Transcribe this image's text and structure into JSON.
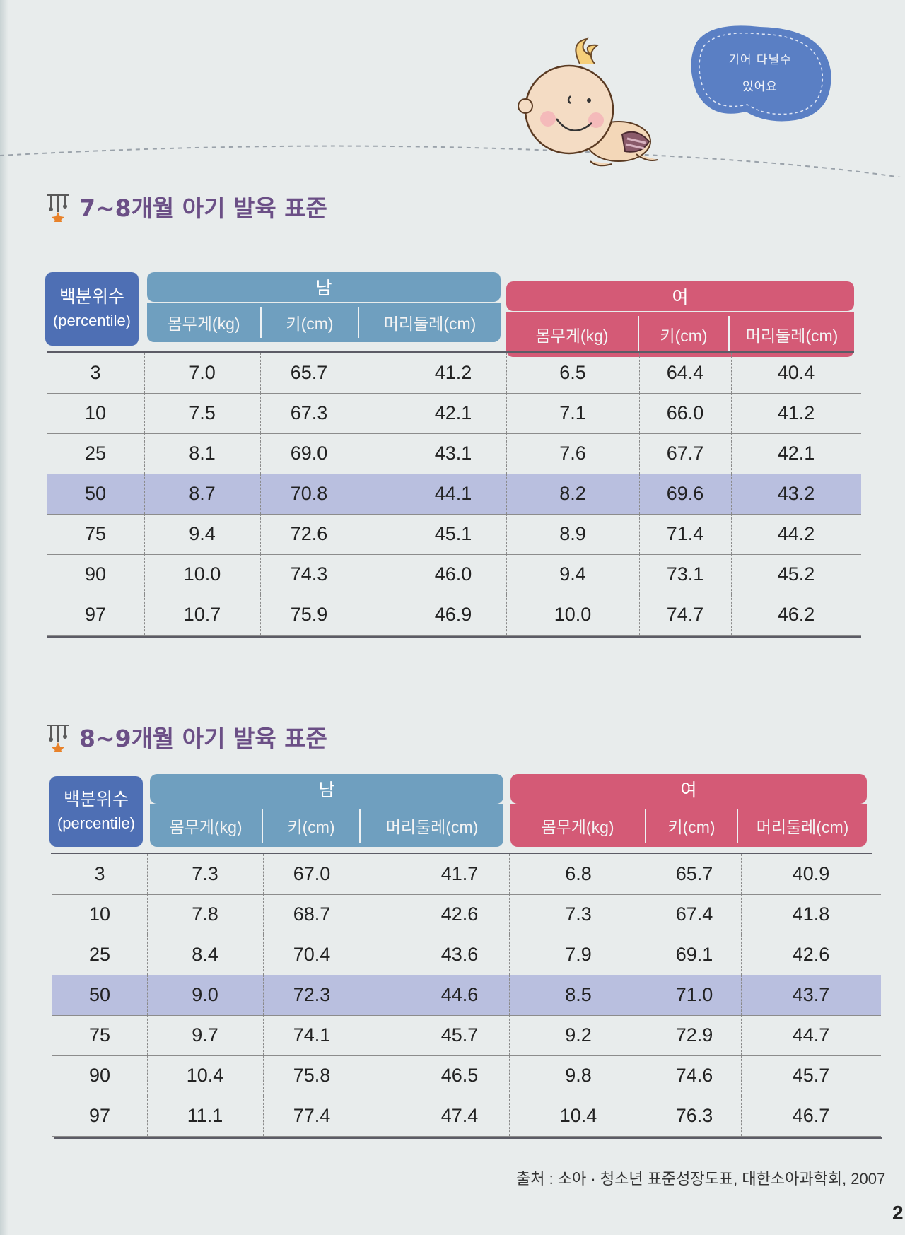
{
  "bubble": {
    "line1": "기어 다닐수",
    "line2": "있어요"
  },
  "section1": {
    "title": "7~8개월 아기 발육 표준"
  },
  "section2": {
    "title": "8~9개월 아기 발육 표준"
  },
  "headers": {
    "percentile_ko": "백분위수",
    "percentile_en": "(percentile)",
    "male": "남",
    "female": "여",
    "weight": "몸무게(kg)",
    "height": "키(cm)",
    "head": "머리둘레(cm)"
  },
  "table1": {
    "rows": [
      [
        "3",
        "7.0",
        "65.7",
        "41.2",
        "6.5",
        "64.4",
        "40.4"
      ],
      [
        "10",
        "7.5",
        "67.3",
        "42.1",
        "7.1",
        "66.0",
        "41.2"
      ],
      [
        "25",
        "8.1",
        "69.0",
        "43.1",
        "7.6",
        "67.7",
        "42.1"
      ],
      [
        "50",
        "8.7",
        "70.8",
        "44.1",
        "8.2",
        "69.6",
        "43.2"
      ],
      [
        "75",
        "9.4",
        "72.6",
        "45.1",
        "8.9",
        "71.4",
        "44.2"
      ],
      [
        "90",
        "10.0",
        "74.3",
        "46.0",
        "9.4",
        "73.1",
        "45.2"
      ],
      [
        "97",
        "10.7",
        "75.9",
        "46.9",
        "10.0",
        "74.7",
        "46.2"
      ]
    ]
  },
  "table2": {
    "rows": [
      [
        "3",
        "7.3",
        "67.0",
        "41.7",
        "6.8",
        "65.7",
        "40.9"
      ],
      [
        "10",
        "7.8",
        "68.7",
        "42.6",
        "7.3",
        "67.4",
        "41.8"
      ],
      [
        "25",
        "8.4",
        "70.4",
        "43.6",
        "7.9",
        "69.1",
        "42.6"
      ],
      [
        "50",
        "9.0",
        "72.3",
        "44.6",
        "8.5",
        "71.0",
        "43.7"
      ],
      [
        "75",
        "9.7",
        "74.1",
        "45.7",
        "9.2",
        "72.9",
        "44.7"
      ],
      [
        "90",
        "10.4",
        "75.8",
        "46.5",
        "9.8",
        "74.6",
        "45.7"
      ],
      [
        "97",
        "11.1",
        "77.4",
        "47.4",
        "10.4",
        "76.3",
        "46.7"
      ]
    ]
  },
  "source": "출처 : 소아 · 청소년 표준성장도표, 대한소아과학회, 2007",
  "page_number": "2"
}
